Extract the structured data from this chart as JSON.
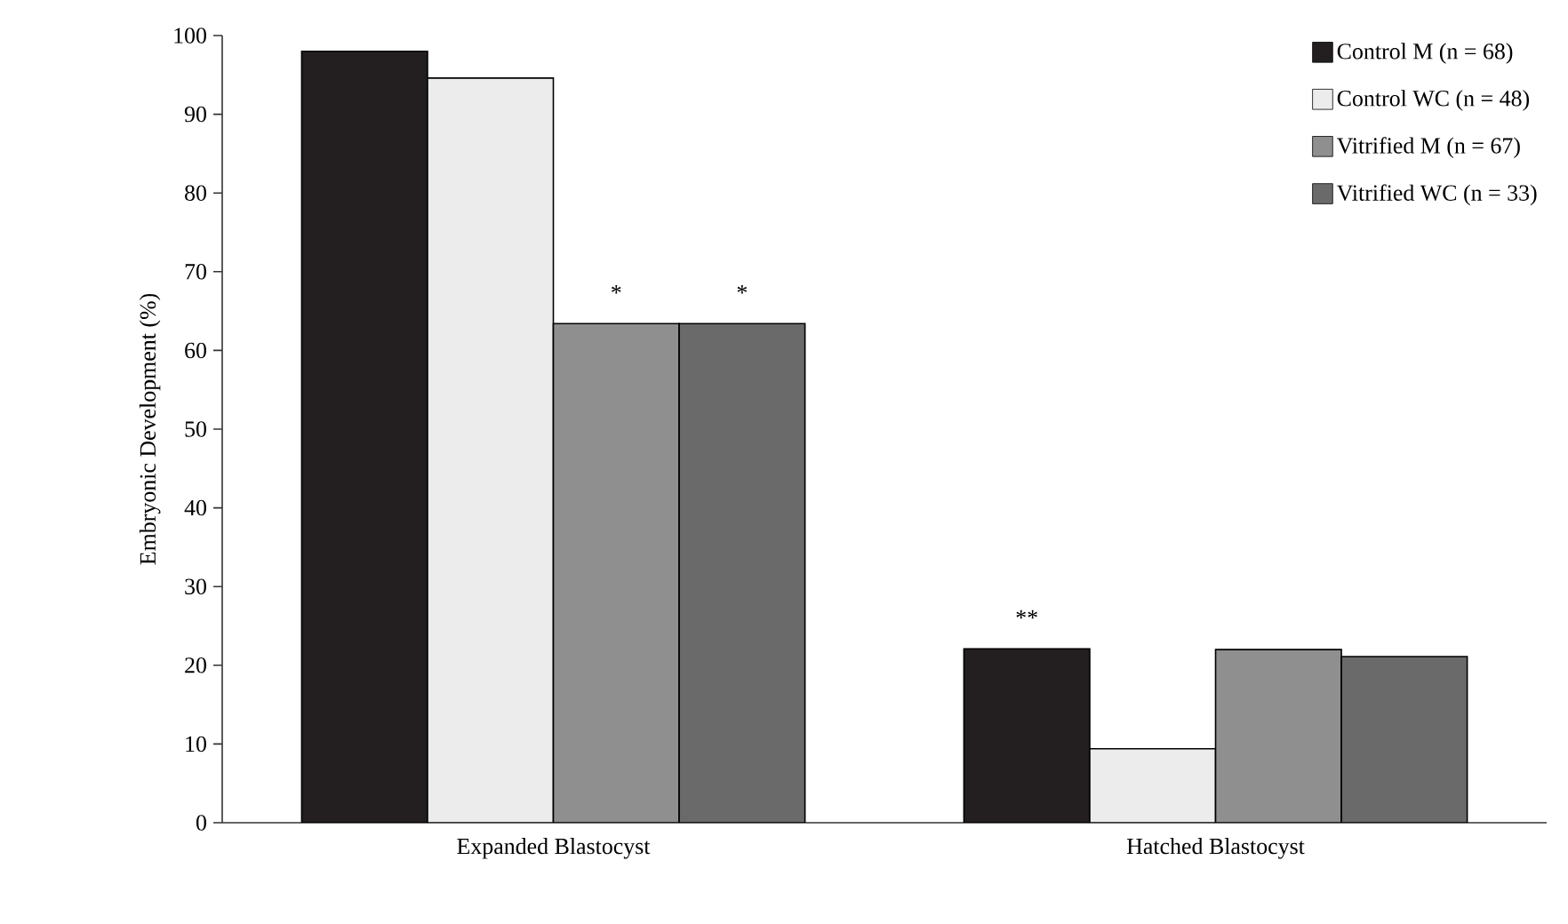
{
  "chart_data": {
    "type": "bar",
    "ylabel": "Embryonic Development (%)",
    "categories": [
      "Expanded Blastocyst",
      "Hatched Blastocyst"
    ],
    "series": [
      {
        "name": "Control M (n = 68)",
        "color": "#231f20",
        "values": [
          98,
          22.1
        ]
      },
      {
        "name": "Control WC (n = 48)",
        "color": "#ececec",
        "values": [
          94.6,
          9.4
        ]
      },
      {
        "name": "Vitrified M (n = 67)",
        "color": "#8f8f8f",
        "values": [
          63.4,
          22
        ]
      },
      {
        "name": "Vitrified WC (n = 33)",
        "color": "#6a6a6a",
        "values": [
          63.4,
          21.1
        ]
      }
    ],
    "ylim": [
      0,
      100
    ],
    "yticks": [
      0,
      10,
      20,
      30,
      40,
      50,
      60,
      70,
      80,
      90,
      100
    ],
    "annotations": [
      "*",
      "*",
      "**"
    ],
    "grid": false,
    "legend": "top right"
  }
}
